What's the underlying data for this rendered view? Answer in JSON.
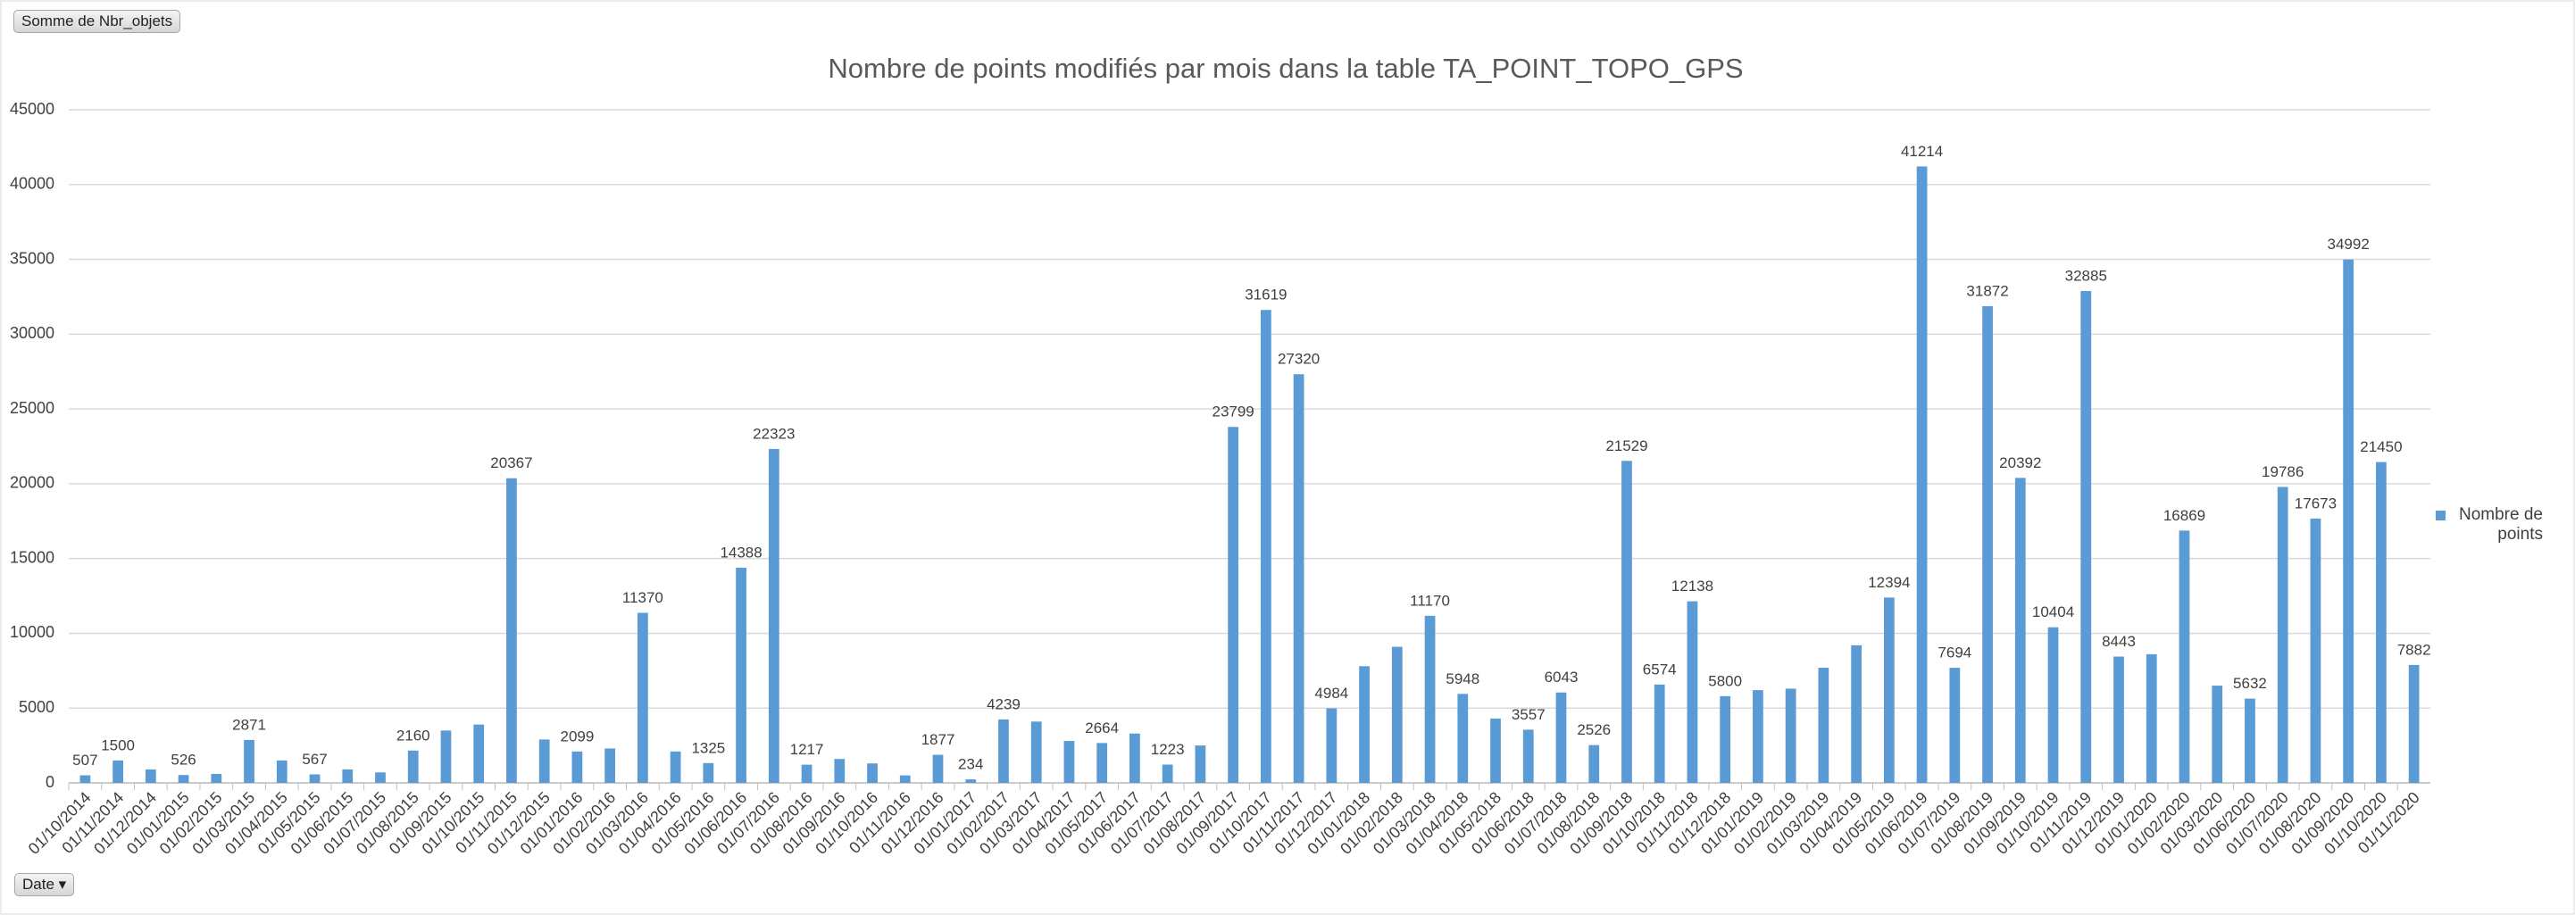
{
  "button_top": "Somme de Nbr_objets",
  "button_bottom": "Date",
  "chart_data": {
    "type": "bar",
    "title": "Nombre de points modifiés par mois dans la table TA_POINT_TOPO_GPS",
    "categories": [
      "01/10/2014",
      "01/11/2014",
      "01/12/2014",
      "01/01/2015",
      "01/02/2015",
      "01/03/2015",
      "01/04/2015",
      "01/05/2015",
      "01/06/2015",
      "01/07/2015",
      "01/08/2015",
      "01/09/2015",
      "01/10/2015",
      "01/11/2015",
      "01/12/2015",
      "01/01/2016",
      "01/02/2016",
      "01/03/2016",
      "01/04/2016",
      "01/05/2016",
      "01/06/2016",
      "01/07/2016",
      "01/08/2016",
      "01/09/2016",
      "01/10/2016",
      "01/11/2016",
      "01/12/2016",
      "01/01/2017",
      "01/02/2017",
      "01/03/2017",
      "01/04/2017",
      "01/05/2017",
      "01/06/2017",
      "01/07/2017",
      "01/08/2017",
      "01/09/2017",
      "01/10/2017",
      "01/11/2017",
      "01/12/2017",
      "01/01/2018",
      "01/02/2018",
      "01/03/2018",
      "01/04/2018",
      "01/05/2018",
      "01/06/2018",
      "01/07/2018",
      "01/08/2018",
      "01/09/2018",
      "01/10/2018",
      "01/11/2018",
      "01/12/2018",
      "01/01/2019",
      "01/02/2019",
      "01/03/2019",
      "01/04/2019",
      "01/05/2019",
      "01/06/2019",
      "01/07/2019",
      "01/08/2019",
      "01/09/2019",
      "01/10/2019",
      "01/11/2019",
      "01/12/2019",
      "01/01/2020",
      "01/02/2020",
      "01/03/2020",
      "01/06/2020",
      "01/07/2020",
      "01/08/2020",
      "01/09/2020",
      "01/10/2020",
      "01/11/2020"
    ],
    "series": [
      {
        "name": "Nombre de points",
        "color": "#5b9bd5",
        "values": [
          507,
          1500,
          900,
          526,
          600,
          2871,
          1500,
          567,
          900,
          700,
          2160,
          3500,
          3900,
          20367,
          2900,
          2099,
          2300,
          11370,
          2100,
          1325,
          14388,
          22323,
          1217,
          1600,
          1300,
          500,
          1877,
          234,
          4239,
          4100,
          2800,
          2664,
          3300,
          1223,
          2500,
          23799,
          31619,
          27320,
          4984,
          7800,
          9100,
          11170,
          5948,
          4300,
          3557,
          6043,
          2526,
          21529,
          6574,
          12138,
          5800,
          6200,
          6300,
          7700,
          9200,
          12394,
          41214,
          7694,
          31872,
          20392,
          10404,
          32885,
          8443,
          8600,
          16869,
          6500,
          5632,
          19786,
          17673,
          34992,
          21450,
          7882
        ],
        "value_labels": [
          "507",
          "1500",
          null,
          "526",
          null,
          "2871",
          null,
          "567",
          null,
          null,
          "2160",
          null,
          null,
          "20367",
          null,
          "2099",
          null,
          "11370",
          null,
          "1325",
          "14388",
          "22323",
          "1217",
          null,
          null,
          null,
          "1877",
          "234",
          "4239",
          null,
          null,
          "2664",
          null,
          "1223",
          null,
          "23799",
          "31619",
          "27320",
          "4984",
          null,
          null,
          "11170",
          "5948",
          null,
          "3557",
          "6043",
          "2526",
          "21529",
          "6574",
          "12138",
          "5800",
          null,
          null,
          null,
          null,
          "12394",
          "41214",
          "7694",
          "31872",
          "20392",
          "10404",
          "32885",
          "8443",
          null,
          "16869",
          null,
          "5632",
          "19786",
          "17673",
          "34992",
          "21450",
          "7882"
        ]
      }
    ],
    "ylim": [
      0,
      45000
    ],
    "yticks": [
      0,
      5000,
      10000,
      15000,
      20000,
      25000,
      30000,
      35000,
      40000,
      45000
    ],
    "grid": true,
    "legend": "right"
  }
}
